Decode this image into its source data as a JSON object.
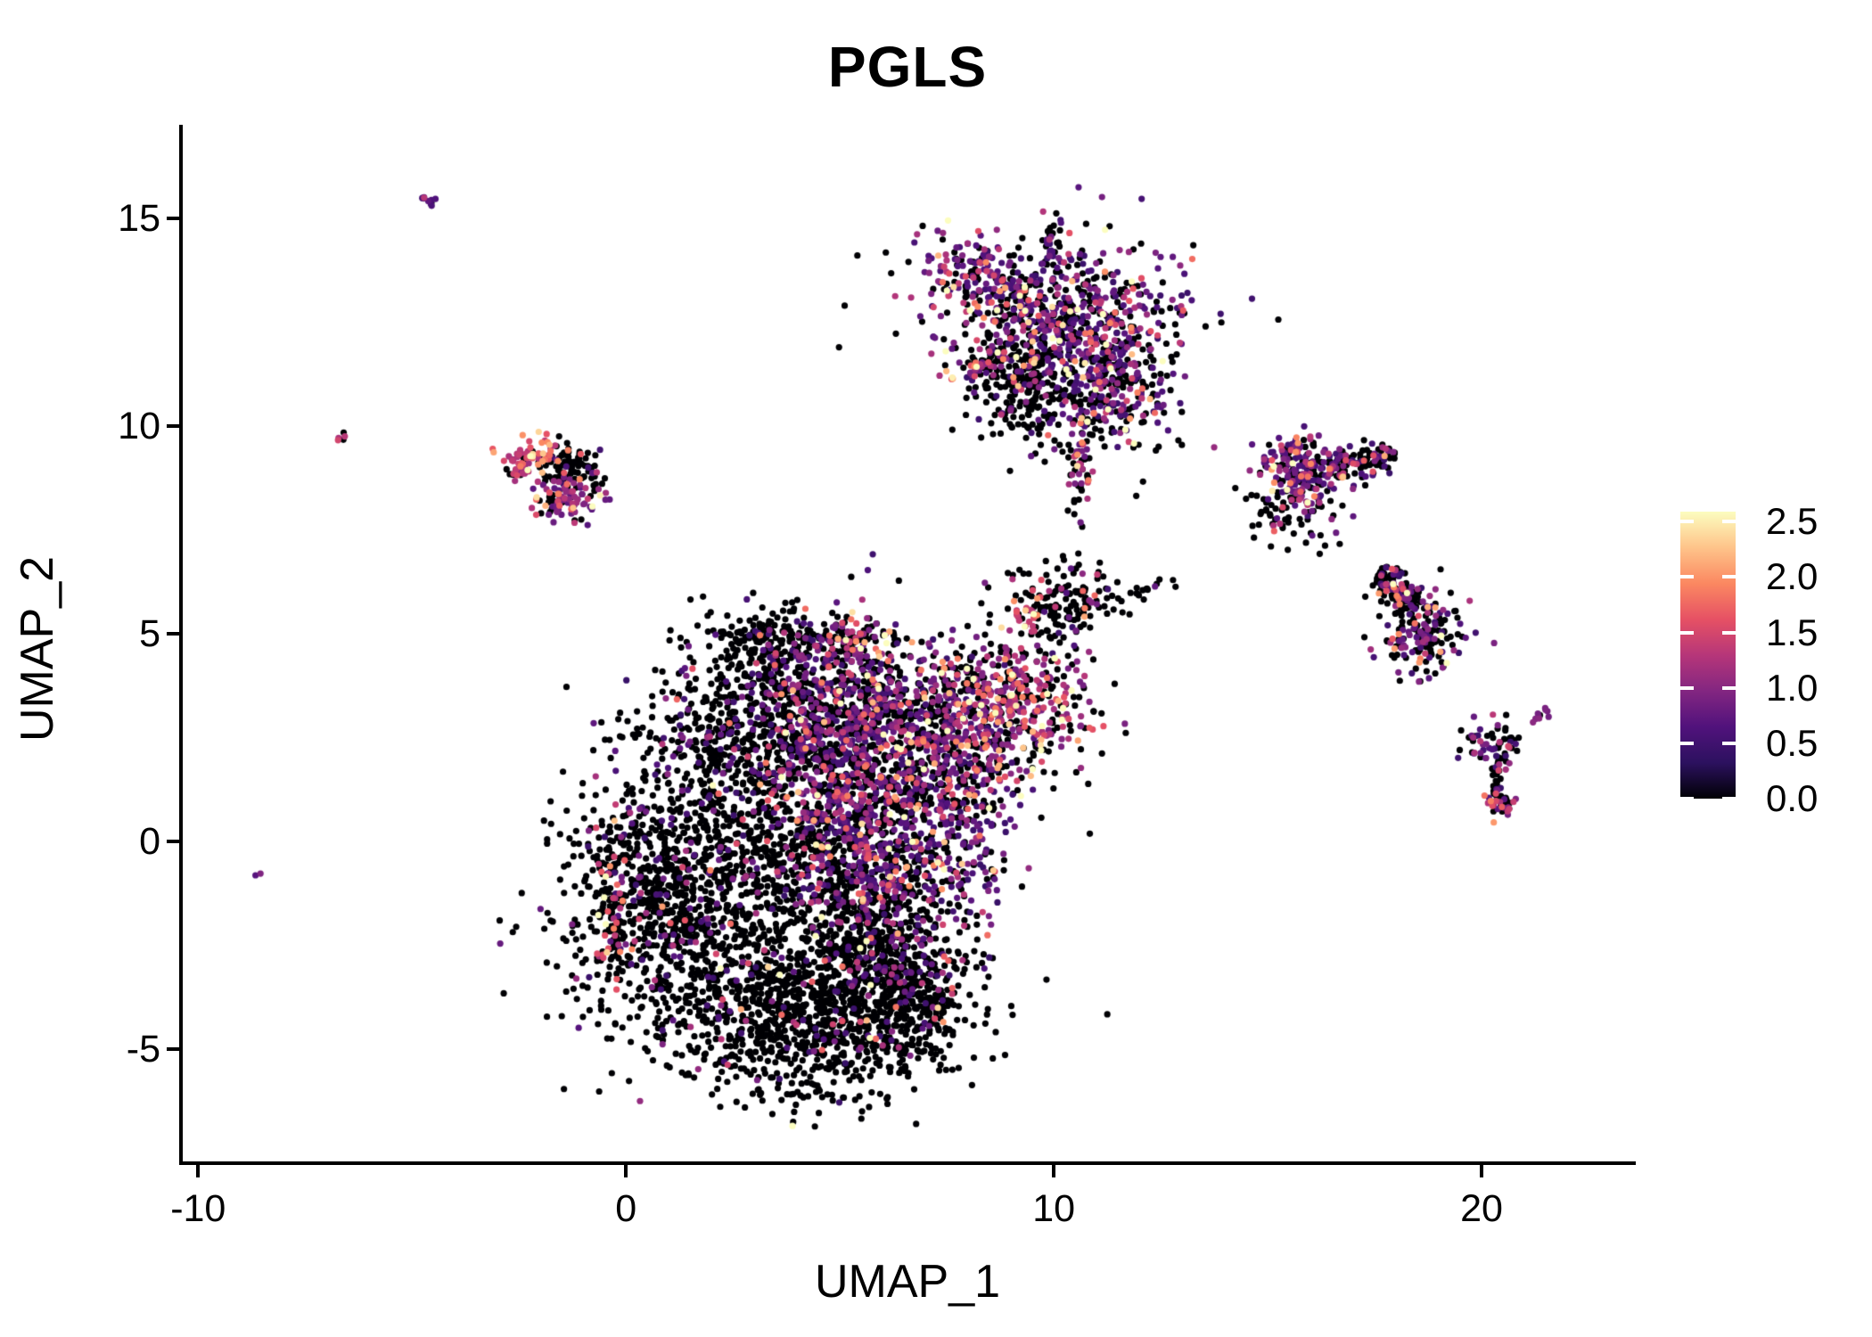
{
  "title": "PGLS",
  "axes": {
    "x": {
      "label": "UMAP_1",
      "ticks": [
        {
          "value": -10,
          "label": "-10"
        },
        {
          "value": 0,
          "label": "0"
        },
        {
          "value": 10,
          "label": "10"
        },
        {
          "value": 20,
          "label": "20"
        }
      ]
    },
    "y": {
      "label": "UMAP_2",
      "ticks": [
        {
          "value": -5,
          "label": "-5"
        },
        {
          "value": 0,
          "label": "0"
        },
        {
          "value": 5,
          "label": "5"
        },
        {
          "value": 10,
          "label": "10"
        },
        {
          "value": 15,
          "label": "15"
        }
      ]
    }
  },
  "legend": {
    "ticks": [
      {
        "value": 2.5,
        "label": "2.5"
      },
      {
        "value": 2.0,
        "label": "2.0"
      },
      {
        "value": 1.5,
        "label": "1.5"
      },
      {
        "value": 1.0,
        "label": "1.0"
      },
      {
        "value": 0.5,
        "label": "0.5"
      },
      {
        "value": 0.0,
        "label": "0.0"
      }
    ]
  },
  "colors": {
    "background": "#FFFFFF",
    "axis": "#000000",
    "text": "#000000",
    "zero_expression": "#000004",
    "high_expression": "#FCFDBF"
  },
  "chart_data": {
    "type": "scatter",
    "title": "PGLS",
    "xlabel": "UMAP_1",
    "ylabel": "UMAP_2",
    "xlim": [
      -10.36,
      23.52
    ],
    "ylim": [
      -7.75,
      17.25
    ],
    "x_ticks": [
      -10,
      0,
      10,
      20
    ],
    "y_ticks": [
      -5,
      0,
      5,
      10,
      15
    ],
    "grid": false,
    "legend_position": "right",
    "colormap": "magma",
    "colormap_stops": [
      {
        "t": 0.0,
        "c": "#000004"
      },
      {
        "t": 0.125,
        "c": "#2C115F"
      },
      {
        "t": 0.25,
        "c": "#51127C"
      },
      {
        "t": 0.375,
        "c": "#832681"
      },
      {
        "t": 0.5,
        "c": "#B63679"
      },
      {
        "t": 0.625,
        "c": "#E65164"
      },
      {
        "t": 0.75,
        "c": "#FB8861"
      },
      {
        "t": 0.875,
        "c": "#FEC48A"
      },
      {
        "t": 1.0,
        "c": "#FCFDBF"
      }
    ],
    "color_scale": {
      "min": 0,
      "max": 2.59,
      "ticks": [
        0.0,
        0.5,
        1.0,
        1.5,
        2.0,
        2.5
      ]
    },
    "point_radius_px": 3.6,
    "seed": 1337,
    "clusters": [
      {
        "name": "blob-left-black",
        "shape": "g",
        "n": 850,
        "cx": 0.9,
        "cy": -1.3,
        "sx": 1.25,
        "sy": 1.55,
        "rot": -10,
        "p0": 0.88,
        "b": 0.7,
        "s": 0.5
      },
      {
        "name": "blob-left-edge-pink",
        "shape": "g",
        "n": 55,
        "cx": -0.35,
        "cy": -1.6,
        "sx": 0.22,
        "sy": 1.15,
        "rot": 0,
        "p0": 0.35,
        "b": 1.8,
        "s": 0.55
      },
      {
        "name": "blob-bottom-black",
        "shape": "g",
        "n": 950,
        "cx": 4.3,
        "cy": -4.3,
        "sx": 1.75,
        "sy": 0.95,
        "rot": 0,
        "p0": 0.93,
        "b": 0.7,
        "s": 0.5
      },
      {
        "name": "blob-bottomright-edge",
        "shape": "s",
        "n": 330,
        "cx": 6.3,
        "cy": -3.1,
        "sx": 1.5,
        "sy": 0.55,
        "rot": -38,
        "p0": 0.92,
        "b": 0.7,
        "s": 0.45
      },
      {
        "name": "blob-mid-black",
        "shape": "g",
        "n": 800,
        "cx": 3.9,
        "cy": -1.3,
        "sx": 1.9,
        "sy": 1.5,
        "rot": 0,
        "p0": 0.89,
        "b": 0.7,
        "s": 0.5
      },
      {
        "name": "blob-centerleft-dark",
        "shape": "g",
        "n": 550,
        "cx": 2.7,
        "cy": 2.5,
        "sx": 1.25,
        "sy": 1.05,
        "rot": 0,
        "p0": 0.8,
        "b": 0.7,
        "s": 0.5
      },
      {
        "name": "blob-top-arm-black",
        "shape": "g",
        "n": 210,
        "cx": 3.6,
        "cy": 4.8,
        "sx": 1.0,
        "sy": 0.45,
        "rot": 5,
        "p0": 0.88,
        "b": 0.7,
        "s": 0.45
      },
      {
        "name": "blob-top-arm-end",
        "shape": "g",
        "n": 110,
        "cx": 5.4,
        "cy": 4.7,
        "sx": 0.45,
        "sy": 0.35,
        "rot": 0,
        "p0": 0.45,
        "b": 1.3,
        "s": 0.5
      },
      {
        "name": "blob-central-purple",
        "shape": "g",
        "n": 750,
        "cx": 5.0,
        "cy": 0.7,
        "sx": 0.85,
        "sy": 1.85,
        "rot": 12,
        "p0": 0.45,
        "b": 0.7,
        "s": 0.55
      },
      {
        "name": "blob-right-purple",
        "shape": "g",
        "n": 650,
        "cx": 6.6,
        "cy": 0.3,
        "sx": 0.95,
        "sy": 2.1,
        "rot": 0,
        "p0": 0.5,
        "b": 0.7,
        "s": 0.55
      },
      {
        "name": "blob-upper-purple",
        "shape": "g",
        "n": 650,
        "cx": 5.7,
        "cy": 3.1,
        "sx": 1.55,
        "sy": 0.8,
        "rot": -5,
        "p0": 0.55,
        "b": 0.7,
        "s": 0.55
      },
      {
        "name": "blob-right-lobe-purple",
        "shape": "g",
        "n": 280,
        "cx": 7.8,
        "cy": 1.4,
        "sx": 0.7,
        "sy": 1.25,
        "rot": 0,
        "p0": 0.5,
        "b": 0.7,
        "s": 0.55
      },
      {
        "name": "sub-pink",
        "shape": "g",
        "n": 430,
        "cx": 9.0,
        "cy": 3.3,
        "sx": 1.0,
        "sy": 0.85,
        "rot": -20,
        "p0": 0.38,
        "b": 1.4,
        "s": 0.6
      },
      {
        "name": "sub-hook-black",
        "shape": "g",
        "n": 150,
        "cx": 10.3,
        "cy": 5.7,
        "sx": 0.65,
        "sy": 0.5,
        "rot": 0,
        "p0": 0.82,
        "b": 0.7,
        "s": 0.5
      },
      {
        "name": "sub-salmon",
        "shape": "g",
        "n": 22,
        "cx": 9.5,
        "cy": 5.6,
        "sx": 0.3,
        "sy": 0.3,
        "rot": 0,
        "p0": 0.15,
        "b": 2.2,
        "s": 0.55
      },
      {
        "name": "sub-trail",
        "shape": "s",
        "n": 16,
        "cx": 12.2,
        "cy": 6.1,
        "sx": 0.75,
        "sy": 0.07,
        "rot": 20,
        "p0": 0.9,
        "b": 0.7,
        "s": 0.4
      },
      {
        "name": "top-core",
        "shape": "g",
        "n": 680,
        "cx": 10.3,
        "cy": 12.4,
        "sx": 1.45,
        "sy": 0.95,
        "rot": 0,
        "p0": 0.38,
        "b": 0.7,
        "s": 0.55
      },
      {
        "name": "top-upperleft-arm",
        "shape": "g",
        "n": 170,
        "cx": 8.4,
        "cy": 13.6,
        "sx": 0.8,
        "sy": 0.42,
        "rot": -18,
        "p0": 0.3,
        "b": 0.85,
        "s": 0.6
      },
      {
        "name": "top-left-streak",
        "shape": "s",
        "n": 52,
        "cx": 8.35,
        "cy": 11.55,
        "sx": 0.55,
        "sy": 0.12,
        "rot": 30,
        "p0": 0.45,
        "b": 1.2,
        "s": 0.6
      },
      {
        "name": "top-streak-tip",
        "shape": "g",
        "n": 3,
        "cx": 7.68,
        "cy": 11.15,
        "sx": 0.08,
        "sy": 0.06,
        "rot": 0,
        "p0": 0,
        "b": 2.5,
        "s": 0.3
      },
      {
        "name": "top-black-patch",
        "shape": "g",
        "n": 190,
        "cx": 9.35,
        "cy": 10.9,
        "sx": 0.5,
        "sy": 0.7,
        "rot": 0,
        "p0": 0.9,
        "b": 0.7,
        "s": 0.5
      },
      {
        "name": "top-br-lobe",
        "shape": "g",
        "n": 240,
        "cx": 11.3,
        "cy": 10.8,
        "sx": 0.7,
        "sy": 0.75,
        "rot": 0,
        "p0": 0.45,
        "b": 0.7,
        "s": 0.55
      },
      {
        "name": "top-tail",
        "shape": "g",
        "n": 55,
        "cx": 10.65,
        "cy": 8.9,
        "sx": 0.13,
        "sy": 0.55,
        "rot": 0,
        "p0": 0.6,
        "b": 1.2,
        "s": 0.6
      },
      {
        "name": "top-spur",
        "shape": "g",
        "n": 34,
        "cx": 9.9,
        "cy": 14.3,
        "sx": 0.16,
        "sy": 0.4,
        "rot": 0,
        "p0": 0.5,
        "b": 0.7,
        "s": 0.4
      },
      {
        "name": "ul-top-arm",
        "shape": "g",
        "n": 60,
        "cx": -2.0,
        "cy": 9.35,
        "sx": 0.48,
        "sy": 0.18,
        "rot": 8,
        "p0": 0.22,
        "b": 2.0,
        "s": 0.55
      },
      {
        "name": "ul-black-mid",
        "shape": "g",
        "n": 80,
        "cx": -1.25,
        "cy": 9.0,
        "sx": 0.38,
        "sy": 0.28,
        "rot": 0,
        "p0": 0.85,
        "b": 0.7,
        "s": 0.4
      },
      {
        "name": "ul-purple-bottom",
        "shape": "g",
        "n": 100,
        "cx": -1.35,
        "cy": 8.25,
        "sx": 0.42,
        "sy": 0.28,
        "rot": 0,
        "p0": 0.35,
        "b": 1.1,
        "s": 0.55
      },
      {
        "name": "ul-diag-arm",
        "shape": "s",
        "n": 26,
        "cx": -2.45,
        "cy": 8.95,
        "sx": 0.3,
        "sy": 0.08,
        "rot": 45,
        "p0": 0.3,
        "b": 1.6,
        "s": 0.5
      },
      {
        "name": "iso-streak-topleft",
        "shape": "s",
        "n": 10,
        "cx": -4.62,
        "cy": 15.45,
        "sx": 0.16,
        "sy": 0.05,
        "rot": -35,
        "p0": 0.1,
        "b": 0.9,
        "s": 0.2
      },
      {
        "name": "iso-pair-left",
        "shape": "s",
        "n": 5,
        "cx": -6.7,
        "cy": 9.7,
        "sx": 0.12,
        "sy": 0.06,
        "rot": -30,
        "p0": 0.25,
        "b": 2.0,
        "s": 0.6
      },
      {
        "name": "iso-dot-left",
        "shape": "g",
        "n": 2,
        "cx": -8.55,
        "cy": -0.8,
        "sx": 0.06,
        "sy": 0.05,
        "rot": 0,
        "p0": 0.5,
        "b": 0.9,
        "s": 0.3
      },
      {
        "name": "r1-core",
        "shape": "g",
        "n": 210,
        "cx": 15.8,
        "cy": 8.9,
        "sx": 0.55,
        "sy": 0.5,
        "rot": 0,
        "p0": 0.32,
        "b": 0.8,
        "s": 0.55
      },
      {
        "name": "r1-arm",
        "shape": "s",
        "n": 110,
        "cx": 17.2,
        "cy": 9.15,
        "sx": 0.8,
        "sy": 0.18,
        "rot": 14,
        "p0": 0.6,
        "b": 0.7,
        "s": 0.5
      },
      {
        "name": "r1-below",
        "shape": "g",
        "n": 55,
        "cx": 15.6,
        "cy": 7.8,
        "sx": 0.55,
        "sy": 0.4,
        "rot": 0,
        "p0": 0.75,
        "b": 0.8,
        "s": 0.5
      },
      {
        "name": "r1-pink-dot",
        "shape": "g",
        "n": 3,
        "cx": 15.15,
        "cy": 7.5,
        "sx": 0.1,
        "sy": 0.08,
        "rot": 0,
        "p0": 0,
        "b": 2.0,
        "s": 0.3
      },
      {
        "name": "r2-upper",
        "shape": "s",
        "n": 120,
        "cx": 18.0,
        "cy": 6.1,
        "sx": 0.55,
        "sy": 0.2,
        "rot": -38,
        "p0": 0.68,
        "b": 0.7,
        "s": 0.5
      },
      {
        "name": "r2-lower",
        "shape": "g",
        "n": 170,
        "cx": 18.6,
        "cy": 5.0,
        "sx": 0.5,
        "sy": 0.45,
        "rot": -30,
        "p0": 0.55,
        "b": 0.7,
        "s": 0.55
      },
      {
        "name": "r3-top",
        "shape": "g",
        "n": 60,
        "cx": 20.25,
        "cy": 2.35,
        "sx": 0.33,
        "sy": 0.27,
        "rot": 0,
        "p0": 0.55,
        "b": 0.7,
        "s": 0.5
      },
      {
        "name": "r3-stem",
        "shape": "s",
        "n": 20,
        "cx": 20.35,
        "cy": 1.6,
        "sx": 0.4,
        "sy": 0.06,
        "rot": 90,
        "p0": 0.6,
        "b": 0.7,
        "s": 0.4
      },
      {
        "name": "r3-bottom",
        "shape": "g",
        "n": 40,
        "cx": 20.4,
        "cy": 0.95,
        "sx": 0.2,
        "sy": 0.16,
        "rot": 0,
        "p0": 0.45,
        "b": 0.9,
        "s": 0.5
      },
      {
        "name": "r3-streak",
        "shape": "s",
        "n": 11,
        "cx": 21.4,
        "cy": 3.05,
        "sx": 0.28,
        "sy": 0.05,
        "rot": 33,
        "p0": 0.05,
        "b": 1.4,
        "s": 0.1
      }
    ]
  }
}
